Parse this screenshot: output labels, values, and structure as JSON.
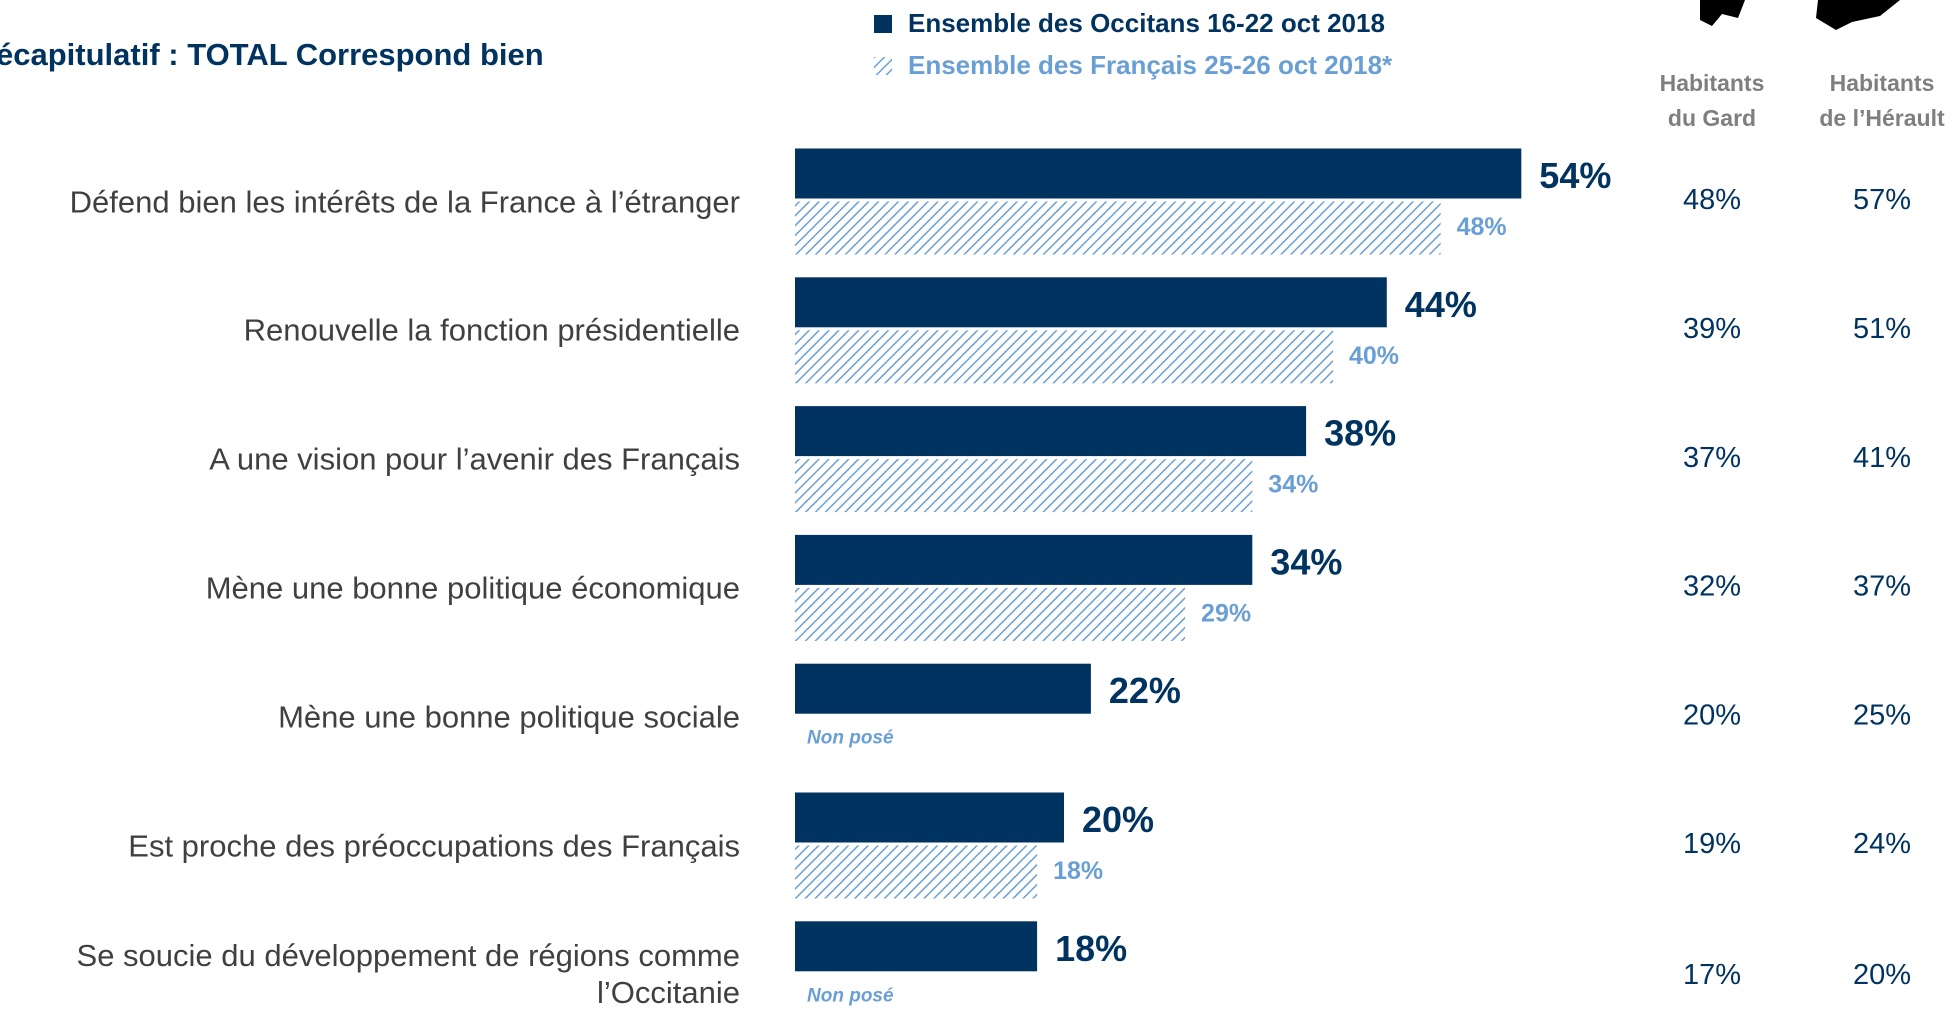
{
  "chart_data": {
    "type": "bar",
    "orientation": "horizontal",
    "title": "écapitulatif : TOTAL Correspond bien",
    "categories": [
      "Défend bien les intérêts de la France à l’étranger",
      "Renouvelle la fonction présidentielle",
      "A une vision pour l’avenir des Français",
      "Mène une bonne politique économique",
      "Mène une bonne politique sociale",
      "Est proche des préoccupations des Français",
      "Se soucie du développement de régions comme l’Occitanie"
    ],
    "series": [
      {
        "name": "Ensemble des Occitans 16-22 oct 2018",
        "color": "#00335f",
        "values": [
          54,
          44,
          38,
          34,
          22,
          20,
          18
        ],
        "value_labels": [
          "54%",
          "44%",
          "38%",
          "34%",
          "22%",
          "20%",
          "18%"
        ]
      },
      {
        "name": "Ensemble des Français 25-26 oct 2018*",
        "color": "#6a9fd6",
        "pattern": "hatch",
        "values": [
          48,
          40,
          34,
          29,
          null,
          18,
          null
        ],
        "value_labels": [
          "48%",
          "40%",
          "34%",
          "29%",
          null,
          "18%",
          null
        ]
      }
    ],
    "missing_label": "Non posé",
    "columns": [
      {
        "header": [
          "Habitants",
          "du Gard"
        ],
        "values": [
          48,
          39,
          37,
          32,
          20,
          19,
          17
        ],
        "value_labels": [
          "48%",
          "39%",
          "37%",
          "32%",
          "20%",
          "19%",
          "17%"
        ]
      },
      {
        "header": [
          "Habitants",
          "de l’Hérault"
        ],
        "values": [
          57,
          51,
          41,
          37,
          25,
          24,
          20
        ],
        "value_labels": [
          "57%",
          "51%",
          "41%",
          "37%",
          "25%",
          "24%",
          "20%"
        ]
      }
    ]
  }
}
